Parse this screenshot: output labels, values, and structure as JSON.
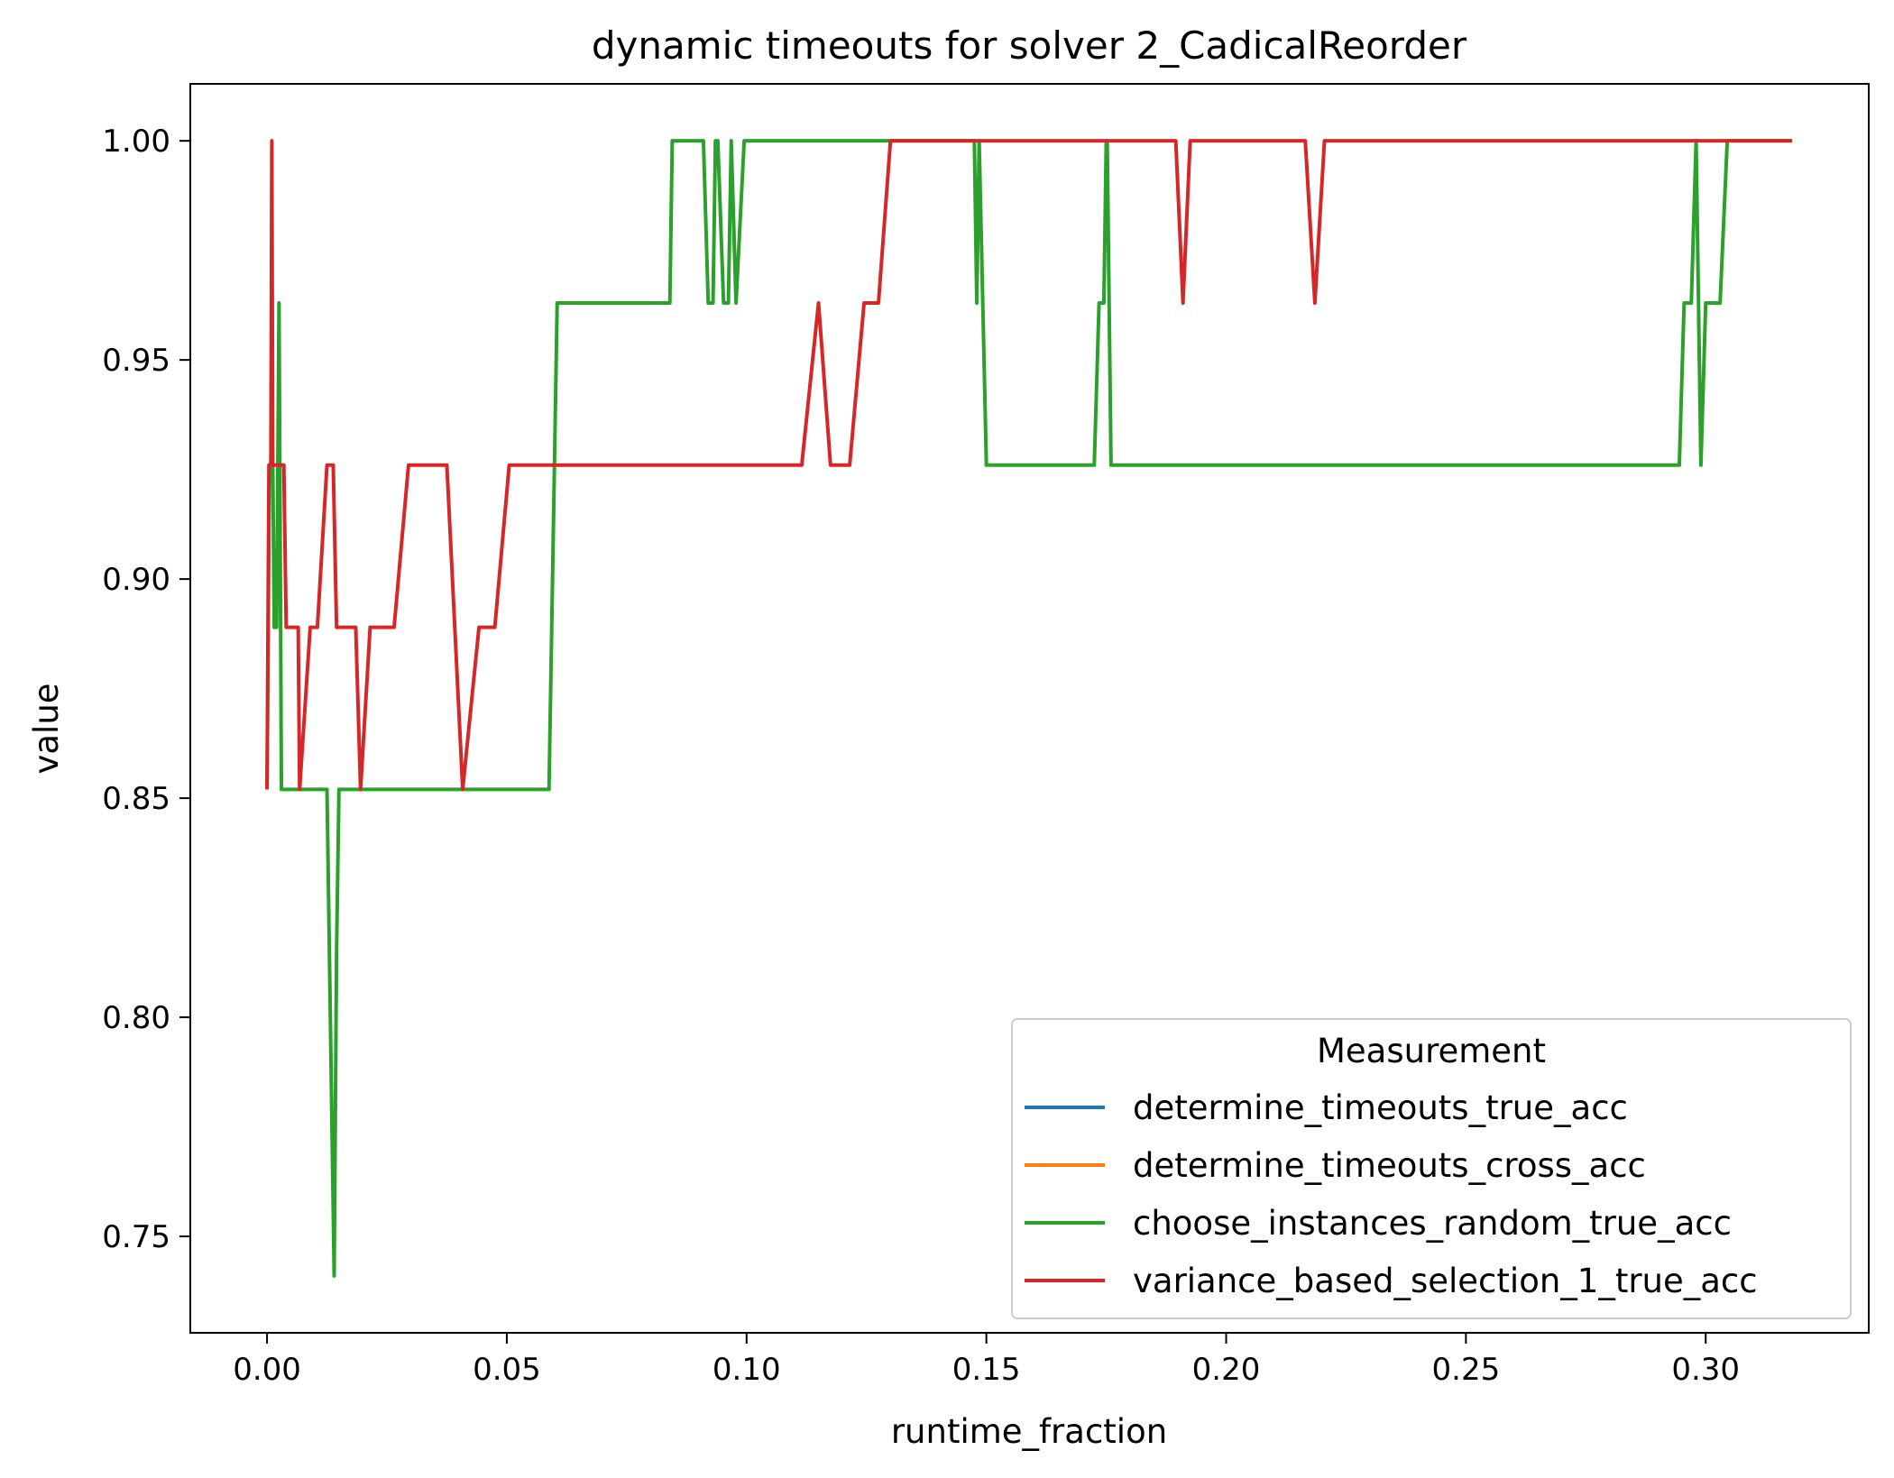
{
  "chart_data": {
    "type": "line",
    "title": "dynamic timeouts for solver 2_CadicalReorder",
    "xlabel": "runtime_fraction",
    "ylabel": "value",
    "xlim": [
      -0.016,
      0.334
    ],
    "ylim": [
      0.728,
      1.013
    ],
    "xticks": [
      0.0,
      0.05,
      0.1,
      0.15,
      0.2,
      0.25,
      0.3
    ],
    "xtick_labels": [
      "0.00",
      "0.05",
      "0.10",
      "0.15",
      "0.20",
      "0.25",
      "0.30"
    ],
    "yticks": [
      0.75,
      0.8,
      0.85,
      0.9,
      0.95,
      1.0
    ],
    "ytick_labels": [
      "0.75",
      "0.80",
      "0.85",
      "0.90",
      "0.95",
      "1.00"
    ],
    "grid": false,
    "legend": {
      "title": "Measurement",
      "placement": "lower-right"
    },
    "series": [
      {
        "name": "determine_timeouts_true_acc",
        "color": "#1f77b4",
        "points": []
      },
      {
        "name": "determine_timeouts_cross_acc",
        "color": "#ff7f0e",
        "points": []
      },
      {
        "name": "choose_instances_random_true_acc",
        "color": "#2ca02c",
        "points": [
          [
            0.0,
            0.852
          ],
          [
            0.0005,
            0.926
          ],
          [
            0.0012,
            0.926
          ],
          [
            0.0015,
            0.889
          ],
          [
            0.002,
            0.889
          ],
          [
            0.0025,
            0.963
          ],
          [
            0.003,
            0.852
          ],
          [
            0.0045,
            0.852
          ],
          [
            0.0125,
            0.852
          ],
          [
            0.014,
            0.741
          ],
          [
            0.0145,
            0.815
          ],
          [
            0.015,
            0.852
          ],
          [
            0.0588,
            0.852
          ],
          [
            0.0605,
            0.963
          ],
          [
            0.084,
            0.963
          ],
          [
            0.0845,
            1.0
          ],
          [
            0.091,
            1.0
          ],
          [
            0.092,
            0.963
          ],
          [
            0.093,
            0.963
          ],
          [
            0.0935,
            1.0
          ],
          [
            0.094,
            1.0
          ],
          [
            0.0952,
            0.963
          ],
          [
            0.0962,
            0.963
          ],
          [
            0.0968,
            1.0
          ],
          [
            0.0978,
            0.963
          ],
          [
            0.0995,
            1.0
          ],
          [
            0.1475,
            1.0
          ],
          [
            0.148,
            0.963
          ],
          [
            0.1485,
            1.0
          ],
          [
            0.15,
            0.926
          ],
          [
            0.1725,
            0.926
          ],
          [
            0.1735,
            0.963
          ],
          [
            0.1745,
            0.963
          ],
          [
            0.175,
            1.0
          ],
          [
            0.1752,
            1.0
          ],
          [
            0.176,
            0.926
          ],
          [
            0.2945,
            0.926
          ],
          [
            0.2955,
            0.963
          ],
          [
            0.297,
            0.963
          ],
          [
            0.298,
            1.0
          ],
          [
            0.299,
            0.926
          ],
          [
            0.3,
            0.963
          ],
          [
            0.303,
            0.963
          ],
          [
            0.3045,
            1.0
          ],
          [
            0.318,
            1.0
          ]
        ]
      },
      {
        "name": "variance_based_selection_1_true_acc",
        "color": "#d62728",
        "points": [
          [
            0.0,
            0.852
          ],
          [
            0.0004,
            0.926
          ],
          [
            0.0008,
            0.926
          ],
          [
            0.001,
            1.0
          ],
          [
            0.0012,
            0.926
          ],
          [
            0.0035,
            0.926
          ],
          [
            0.004,
            0.889
          ],
          [
            0.0065,
            0.889
          ],
          [
            0.0068,
            0.852
          ],
          [
            0.009,
            0.889
          ],
          [
            0.0105,
            0.889
          ],
          [
            0.0125,
            0.926
          ],
          [
            0.0138,
            0.926
          ],
          [
            0.0145,
            0.889
          ],
          [
            0.0185,
            0.889
          ],
          [
            0.0195,
            0.852
          ],
          [
            0.0215,
            0.889
          ],
          [
            0.0265,
            0.889
          ],
          [
            0.0295,
            0.926
          ],
          [
            0.0375,
            0.926
          ],
          [
            0.0408,
            0.852
          ],
          [
            0.0442,
            0.889
          ],
          [
            0.0475,
            0.889
          ],
          [
            0.0505,
            0.926
          ],
          [
            0.1115,
            0.926
          ],
          [
            0.115,
            0.963
          ],
          [
            0.1175,
            0.926
          ],
          [
            0.1215,
            0.926
          ],
          [
            0.1245,
            0.963
          ],
          [
            0.1275,
            0.963
          ],
          [
            0.13,
            1.0
          ],
          [
            0.1895,
            1.0
          ],
          [
            0.191,
            0.963
          ],
          [
            0.1925,
            1.0
          ],
          [
            0.2165,
            1.0
          ],
          [
            0.2185,
            0.963
          ],
          [
            0.2205,
            1.0
          ],
          [
            0.318,
            1.0
          ]
        ]
      }
    ]
  }
}
